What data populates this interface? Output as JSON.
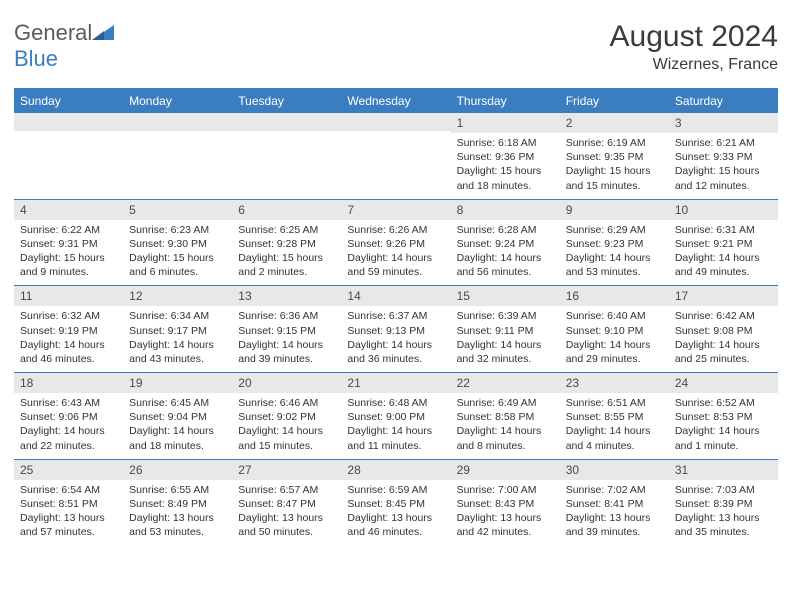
{
  "logo": {
    "part1": "General",
    "part2": "Blue"
  },
  "title": "August 2024",
  "location": "Wizernes, France",
  "colors": {
    "accent": "#3b7ec0",
    "header_text": "#ffffff",
    "band_bg": "#e8e8e8",
    "text": "#333333",
    "title_text": "#3a3a3a",
    "logo_gray": "#5a5a5a"
  },
  "typography": {
    "title_fontsize": 30,
    "location_fontsize": 16,
    "dayheader_fontsize": 12,
    "date_fontsize": 12,
    "body_fontsize": 10.5
  },
  "day_headers": [
    "Sunday",
    "Monday",
    "Tuesday",
    "Wednesday",
    "Thursday",
    "Friday",
    "Saturday"
  ],
  "weeks": [
    [
      {
        "date": "",
        "sunrise": "",
        "sunset": "",
        "daylight": ""
      },
      {
        "date": "",
        "sunrise": "",
        "sunset": "",
        "daylight": ""
      },
      {
        "date": "",
        "sunrise": "",
        "sunset": "",
        "daylight": ""
      },
      {
        "date": "",
        "sunrise": "",
        "sunset": "",
        "daylight": ""
      },
      {
        "date": "1",
        "sunrise": "Sunrise: 6:18 AM",
        "sunset": "Sunset: 9:36 PM",
        "daylight": "Daylight: 15 hours and 18 minutes."
      },
      {
        "date": "2",
        "sunrise": "Sunrise: 6:19 AM",
        "sunset": "Sunset: 9:35 PM",
        "daylight": "Daylight: 15 hours and 15 minutes."
      },
      {
        "date": "3",
        "sunrise": "Sunrise: 6:21 AM",
        "sunset": "Sunset: 9:33 PM",
        "daylight": "Daylight: 15 hours and 12 minutes."
      }
    ],
    [
      {
        "date": "4",
        "sunrise": "Sunrise: 6:22 AM",
        "sunset": "Sunset: 9:31 PM",
        "daylight": "Daylight: 15 hours and 9 minutes."
      },
      {
        "date": "5",
        "sunrise": "Sunrise: 6:23 AM",
        "sunset": "Sunset: 9:30 PM",
        "daylight": "Daylight: 15 hours and 6 minutes."
      },
      {
        "date": "6",
        "sunrise": "Sunrise: 6:25 AM",
        "sunset": "Sunset: 9:28 PM",
        "daylight": "Daylight: 15 hours and 2 minutes."
      },
      {
        "date": "7",
        "sunrise": "Sunrise: 6:26 AM",
        "sunset": "Sunset: 9:26 PM",
        "daylight": "Daylight: 14 hours and 59 minutes."
      },
      {
        "date": "8",
        "sunrise": "Sunrise: 6:28 AM",
        "sunset": "Sunset: 9:24 PM",
        "daylight": "Daylight: 14 hours and 56 minutes."
      },
      {
        "date": "9",
        "sunrise": "Sunrise: 6:29 AM",
        "sunset": "Sunset: 9:23 PM",
        "daylight": "Daylight: 14 hours and 53 minutes."
      },
      {
        "date": "10",
        "sunrise": "Sunrise: 6:31 AM",
        "sunset": "Sunset: 9:21 PM",
        "daylight": "Daylight: 14 hours and 49 minutes."
      }
    ],
    [
      {
        "date": "11",
        "sunrise": "Sunrise: 6:32 AM",
        "sunset": "Sunset: 9:19 PM",
        "daylight": "Daylight: 14 hours and 46 minutes."
      },
      {
        "date": "12",
        "sunrise": "Sunrise: 6:34 AM",
        "sunset": "Sunset: 9:17 PM",
        "daylight": "Daylight: 14 hours and 43 minutes."
      },
      {
        "date": "13",
        "sunrise": "Sunrise: 6:36 AM",
        "sunset": "Sunset: 9:15 PM",
        "daylight": "Daylight: 14 hours and 39 minutes."
      },
      {
        "date": "14",
        "sunrise": "Sunrise: 6:37 AM",
        "sunset": "Sunset: 9:13 PM",
        "daylight": "Daylight: 14 hours and 36 minutes."
      },
      {
        "date": "15",
        "sunrise": "Sunrise: 6:39 AM",
        "sunset": "Sunset: 9:11 PM",
        "daylight": "Daylight: 14 hours and 32 minutes."
      },
      {
        "date": "16",
        "sunrise": "Sunrise: 6:40 AM",
        "sunset": "Sunset: 9:10 PM",
        "daylight": "Daylight: 14 hours and 29 minutes."
      },
      {
        "date": "17",
        "sunrise": "Sunrise: 6:42 AM",
        "sunset": "Sunset: 9:08 PM",
        "daylight": "Daylight: 14 hours and 25 minutes."
      }
    ],
    [
      {
        "date": "18",
        "sunrise": "Sunrise: 6:43 AM",
        "sunset": "Sunset: 9:06 PM",
        "daylight": "Daylight: 14 hours and 22 minutes."
      },
      {
        "date": "19",
        "sunrise": "Sunrise: 6:45 AM",
        "sunset": "Sunset: 9:04 PM",
        "daylight": "Daylight: 14 hours and 18 minutes."
      },
      {
        "date": "20",
        "sunrise": "Sunrise: 6:46 AM",
        "sunset": "Sunset: 9:02 PM",
        "daylight": "Daylight: 14 hours and 15 minutes."
      },
      {
        "date": "21",
        "sunrise": "Sunrise: 6:48 AM",
        "sunset": "Sunset: 9:00 PM",
        "daylight": "Daylight: 14 hours and 11 minutes."
      },
      {
        "date": "22",
        "sunrise": "Sunrise: 6:49 AM",
        "sunset": "Sunset: 8:58 PM",
        "daylight": "Daylight: 14 hours and 8 minutes."
      },
      {
        "date": "23",
        "sunrise": "Sunrise: 6:51 AM",
        "sunset": "Sunset: 8:55 PM",
        "daylight": "Daylight: 14 hours and 4 minutes."
      },
      {
        "date": "24",
        "sunrise": "Sunrise: 6:52 AM",
        "sunset": "Sunset: 8:53 PM",
        "daylight": "Daylight: 14 hours and 1 minute."
      }
    ],
    [
      {
        "date": "25",
        "sunrise": "Sunrise: 6:54 AM",
        "sunset": "Sunset: 8:51 PM",
        "daylight": "Daylight: 13 hours and 57 minutes."
      },
      {
        "date": "26",
        "sunrise": "Sunrise: 6:55 AM",
        "sunset": "Sunset: 8:49 PM",
        "daylight": "Daylight: 13 hours and 53 minutes."
      },
      {
        "date": "27",
        "sunrise": "Sunrise: 6:57 AM",
        "sunset": "Sunset: 8:47 PM",
        "daylight": "Daylight: 13 hours and 50 minutes."
      },
      {
        "date": "28",
        "sunrise": "Sunrise: 6:59 AM",
        "sunset": "Sunset: 8:45 PM",
        "daylight": "Daylight: 13 hours and 46 minutes."
      },
      {
        "date": "29",
        "sunrise": "Sunrise: 7:00 AM",
        "sunset": "Sunset: 8:43 PM",
        "daylight": "Daylight: 13 hours and 42 minutes."
      },
      {
        "date": "30",
        "sunrise": "Sunrise: 7:02 AM",
        "sunset": "Sunset: 8:41 PM",
        "daylight": "Daylight: 13 hours and 39 minutes."
      },
      {
        "date": "31",
        "sunrise": "Sunrise: 7:03 AM",
        "sunset": "Sunset: 8:39 PM",
        "daylight": "Daylight: 13 hours and 35 minutes."
      }
    ]
  ]
}
